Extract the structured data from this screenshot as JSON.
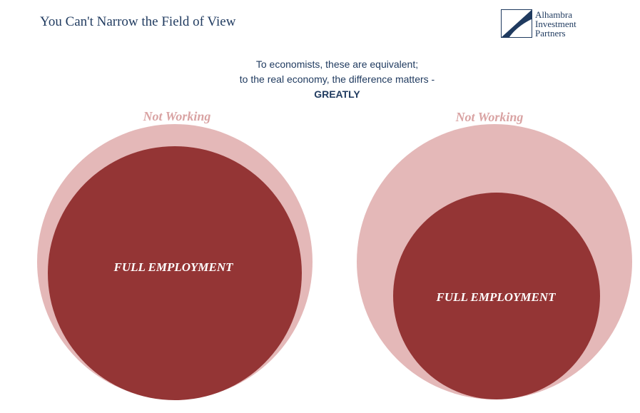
{
  "header": {
    "title": "You Can't Narrow the Field of View",
    "logo": {
      "lines": [
        "Alhambra",
        "Investment",
        "Partners"
      ],
      "icon": "logo-mark-icon"
    }
  },
  "subtitle": {
    "line1": "To economists, these are equivalent;",
    "line2": "to the real economy, the difference  matters -",
    "emphasis": "GREATLY"
  },
  "colors": {
    "outer": "#e4b8b8",
    "inner": "#943535",
    "outer_label": "#d9a3a3",
    "inner_label": "#ffffff",
    "navy": "#1f3a5f"
  },
  "diagrams": [
    {
      "outer_label": "Not Working",
      "inner_label": "FULL EMPLOYMENT"
    },
    {
      "outer_label": "Not Working",
      "inner_label": "FULL EMPLOYMENT"
    }
  ]
}
